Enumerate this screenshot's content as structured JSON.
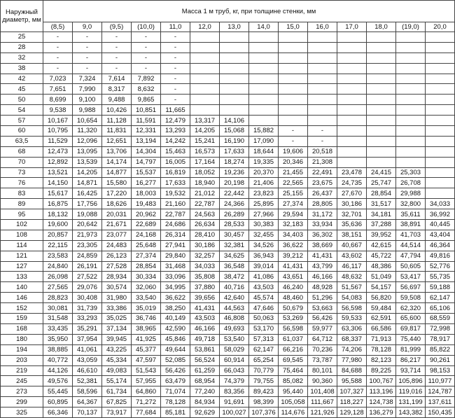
{
  "table": {
    "header": {
      "diameter": "Наружный диаметр, мм",
      "mass": "Масса 1 м труб, кг, при толщине стенки, мм",
      "thickness": [
        "(8,5)",
        "9,0",
        "(9,5)",
        "(10,0)",
        "11,0",
        "12,0",
        "13,0",
        "14,0",
        "15,0",
        "16,0",
        "17,0",
        "18,0",
        "(19,0)",
        "20,0"
      ]
    },
    "rows": [
      {
        "diameter": "25",
        "cells": [
          "-",
          "-",
          "-",
          "-",
          "-",
          null,
          null,
          null,
          null,
          null,
          null,
          null,
          null,
          null
        ]
      },
      {
        "diameter": "28",
        "cells": [
          "-",
          "-",
          "-",
          "-",
          "-",
          null,
          null,
          null,
          null,
          null,
          null,
          null,
          null,
          null
        ]
      },
      {
        "diameter": "32",
        "cells": [
          "-",
          "-",
          "-",
          "-",
          "-",
          null,
          null,
          null,
          null,
          null,
          null,
          null,
          null,
          null
        ]
      },
      {
        "diameter": "38",
        "cells": [
          "-",
          "-",
          "-",
          "-",
          "-",
          null,
          null,
          null,
          null,
          null,
          null,
          null,
          null,
          null
        ]
      },
      {
        "diameter": "42",
        "cells": [
          "7,023",
          "7,324",
          "7,614",
          "7,892",
          "-",
          null,
          null,
          null,
          null,
          null,
          null,
          null,
          null,
          null
        ]
      },
      {
        "diameter": "45",
        "cells": [
          "7,651",
          "7,990",
          "8,317",
          "8,632",
          "-",
          null,
          null,
          null,
          null,
          null,
          null,
          null,
          null,
          null
        ]
      },
      {
        "diameter": "50",
        "cells": [
          "8,699",
          "9,100",
          "9,488",
          "9,865",
          "-",
          null,
          null,
          null,
          null,
          null,
          null,
          null,
          null,
          null
        ]
      },
      {
        "diameter": "54",
        "cells": [
          "9,538",
          "9,988",
          "10,426",
          "10,851",
          "11,665",
          null,
          null,
          null,
          null,
          null,
          null,
          null,
          null,
          null
        ]
      },
      {
        "diameter": "57",
        "cells": [
          "10,167",
          "10,654",
          "11,128",
          "11,591",
          "12,479",
          "13,317",
          "14,106",
          null,
          null,
          null,
          null,
          null,
          null,
          null
        ]
      },
      {
        "diameter": "60",
        "cells": [
          "10,795",
          "11,320",
          "11,831",
          "12,331",
          "13,293",
          "14,205",
          "15,068",
          "15,882",
          "-",
          "-",
          null,
          null,
          null,
          null
        ]
      },
      {
        "diameter": "63,5",
        "cells": [
          "11,529",
          "12,096",
          "12,651",
          "13,194",
          "14,242",
          "15,241",
          "16,190",
          "17,090",
          "-",
          "-",
          null,
          null,
          null,
          null
        ]
      },
      {
        "diameter": "68",
        "cells": [
          "12,473",
          "13,095",
          "13,706",
          "14,304",
          "15,463",
          "16,573",
          "17,633",
          "18,644",
          "19,606",
          "20,518",
          null,
          null,
          null,
          null
        ]
      },
      {
        "diameter": "70",
        "cells": [
          "12,892",
          "13,539",
          "14,174",
          "14,797",
          "16,005",
          "17,164",
          "18,274",
          "19,335",
          "20,346",
          "21,308",
          null,
          null,
          null,
          null
        ]
      },
      {
        "diameter": "73",
        "cells": [
          "13,521",
          "14,205",
          "14,877",
          "15,537",
          "16,819",
          "18,052",
          "19,236",
          "20,370",
          "21,455",
          "22,491",
          "23,478",
          "24,415",
          "25,303",
          null
        ]
      },
      {
        "diameter": "76",
        "cells": [
          "14,150",
          "14,871",
          "15,580",
          "16,277",
          "17,633",
          "18,940",
          "20,198",
          "21,406",
          "22,565",
          "23,675",
          "24,735",
          "25,747",
          "26,708",
          null
        ]
      },
      {
        "diameter": "83",
        "cells": [
          "15,617",
          "16,425",
          "17,220",
          "18,003",
          "19,532",
          "21,012",
          "22,442",
          "23,823",
          "25,155",
          "26,437",
          "27,670",
          "28,854",
          "29,988",
          null
        ]
      },
      {
        "diameter": "89",
        "cells": [
          "16,875",
          "17,756",
          "18,626",
          "19,483",
          "21,160",
          "22,787",
          "24,366",
          "25,895",
          "27,374",
          "28,805",
          "30,186",
          "31,517",
          "32,800",
          "34,033"
        ]
      },
      {
        "diameter": "95",
        "cells": [
          "18,132",
          "19,088",
          "20,031",
          "20,962",
          "22,787",
          "24,563",
          "26,289",
          "27,966",
          "29,594",
          "31,172",
          "32,701",
          "34,181",
          "35,611",
          "36,992"
        ]
      },
      {
        "diameter": "102",
        "cells": [
          "19,600",
          "20,642",
          "21,671",
          "22,689",
          "24,686",
          "26,634",
          "28,533",
          "30,383",
          "32,183",
          "33,934",
          "35,636",
          "37,288",
          "38,891",
          "40,445"
        ]
      },
      {
        "diameter": "108",
        "cells": [
          "20,857",
          "21,973",
          "23,077",
          "24,168",
          "26,314",
          "28,410",
          "30,457",
          "32,455",
          "34,403",
          "36,302",
          "38,151",
          "39,952",
          "41,703",
          "43,404"
        ]
      },
      {
        "diameter": "114",
        "cells": [
          "22,115",
          "23,305",
          "24,483",
          "25,648",
          "27,941",
          "30,186",
          "32,381",
          "34,526",
          "36,622",
          "38,669",
          "40,667",
          "42,615",
          "44,514",
          "46,364"
        ]
      },
      {
        "diameter": "121",
        "cells": [
          "23,583",
          "24,859",
          "26,123",
          "27,374",
          "29,840",
          "32,257",
          "34,625",
          "36,943",
          "39,212",
          "41,431",
          "43,602",
          "45,722",
          "47,794",
          "49,816"
        ]
      },
      {
        "diameter": "127",
        "cells": [
          "24,840",
          "26,191",
          "27,528",
          "28,854",
          "31,468",
          "34,033",
          "36,548",
          "39,014",
          "41,431",
          "43,799",
          "46,117",
          "48,386",
          "50,605",
          "52,776"
        ]
      },
      {
        "diameter": "133",
        "cells": [
          "26,098",
          "27,522",
          "28,934",
          "30,334",
          "33,096",
          "35,808",
          "38,472",
          "41,086",
          "43,651",
          "46,166",
          "48,632",
          "51,049",
          "53,417",
          "55,735"
        ]
      },
      {
        "diameter": "140",
        "cells": [
          "27,565",
          "29,076",
          "30,574",
          "32,060",
          "34,995",
          "37,880",
          "40,716",
          "43,503",
          "46,240",
          "48,928",
          "51,567",
          "54,157",
          "56,697",
          "59,188"
        ]
      },
      {
        "diameter": "146",
        "cells": [
          "28,823",
          "30,408",
          "31,980",
          "33,540",
          "36,622",
          "39,656",
          "42,640",
          "45,574",
          "48,460",
          "51,296",
          "54,083",
          "56,820",
          "59,508",
          "62,147"
        ]
      },
      {
        "diameter": "152",
        "cells": [
          "30,081",
          "31,739",
          "33,386",
          "35,019",
          "38,250",
          "41,431",
          "44,563",
          "47,646",
          "50,679",
          "53,663",
          "56,598",
          "59,484",
          "62,320",
          "65,106"
        ]
      },
      {
        "diameter": "159",
        "cells": [
          "31,548",
          "33,293",
          "35,025",
          "36,746",
          "40,149",
          "43,503",
          "46,808",
          "50,063",
          "53,269",
          "56,426",
          "59,533",
          "62,591",
          "65,600",
          "68,559"
        ]
      },
      {
        "diameter": "168",
        "cells": [
          "33,435",
          "35,291",
          "37,134",
          "38,965",
          "42,590",
          "46,166",
          "49,693",
          "53,170",
          "56,598",
          "59,977",
          "63,306",
          "66,586",
          "69,817",
          "72,998"
        ]
      },
      {
        "diameter": "180",
        "cells": [
          "35,950",
          "37,954",
          "39,945",
          "41,925",
          "45,846",
          "49,718",
          "53,540",
          "57,313",
          "61,037",
          "64,712",
          "68,337",
          "71,913",
          "75,440",
          "78,917"
        ]
      },
      {
        "diameter": "194",
        "cells": [
          "38,885",
          "41,061",
          "43,225",
          "45,377",
          "49,644",
          "53,861",
          "58,029",
          "62,147",
          "66,216",
          "70,236",
          "74,206",
          "78,128",
          "81,999",
          "85,822"
        ]
      },
      {
        "diameter": "203",
        "cells": [
          "40,772",
          "43,059",
          "45,334",
          "47,597",
          "52,085",
          "56,524",
          "60,914",
          "65,254",
          "69,545",
          "73,787",
          "77,980",
          "82,123",
          "86,217",
          "90,261"
        ]
      },
      {
        "diameter": "219",
        "cells": [
          "44,126",
          "46,610",
          "49,083",
          "51,543",
          "56,426",
          "61,259",
          "66,043",
          "70,779",
          "75,464",
          "80,101",
          "84,688",
          "89,225",
          "93,714",
          "98,153"
        ]
      },
      {
        "diameter": "245",
        "cells": [
          "49,576",
          "52,381",
          "55,174",
          "57,955",
          "63,479",
          "68,954",
          "74,379",
          "79,755",
          "85,082",
          "90,360",
          "95,588",
          "100,767",
          "105,896",
          "110,977"
        ]
      },
      {
        "diameter": "273",
        "cells": [
          "55,445",
          "58,596",
          "61,734",
          "64,860",
          "71,074",
          "77,240",
          "83,356",
          "89,423",
          "95,440",
          "101,408",
          "107,327",
          "113,196",
          "119,016",
          "124,787"
        ]
      },
      {
        "diameter": "299",
        "cells": [
          "60,895",
          "64,367",
          "67,825",
          "71,272",
          "78,128",
          "84,934",
          "91,691",
          "98,399",
          "105,058",
          "111,667",
          "118,227",
          "124,738",
          "131,199",
          "137,611"
        ]
      },
      {
        "diameter": "325",
        "cells": [
          "66,346",
          "70,137",
          "73,917",
          "77,684",
          "85,181",
          "92,629",
          "100,027",
          "107,376",
          "114,676",
          "121,926",
          "129,128",
          "136,279",
          "143,382",
          "150,435"
        ]
      }
    ]
  }
}
